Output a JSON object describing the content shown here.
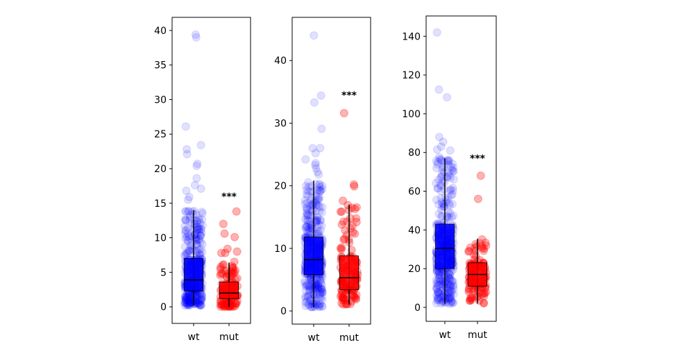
{
  "chart_data": [
    {
      "type": "box-strip",
      "categories": [
        "wt",
        "mut"
      ],
      "ylim": [
        -2.4,
        41.9
      ],
      "yticks": [
        0,
        5,
        10,
        15,
        20,
        25,
        30,
        35,
        40
      ],
      "colors": {
        "wt": "#0000ff",
        "mut": "#ff0000"
      },
      "boxes": [
        {
          "group": "wt",
          "whisker_low": 0.2,
          "q1": 2.3,
          "median": 3.9,
          "q3": 7.0,
          "whisker_high": 14.0,
          "n": 400
        },
        {
          "group": "mut",
          "whisker_low": 0.0,
          "q1": 1.2,
          "median": 2.0,
          "q3": 3.6,
          "whisker_high": 6.4,
          "n": 110
        }
      ],
      "outliers": {
        "wt": [
          39.4,
          39.0,
          26.1,
          23.4,
          22.8,
          22.1,
          20.7,
          20.4,
          18.6,
          17.6,
          17.1,
          16.8,
          15.9,
          15.5
        ],
        "mut": [
          13.8,
          12.0,
          10.6,
          10.1,
          8.4,
          8.0,
          7.8,
          7.8,
          6.5
        ]
      },
      "annotation": {
        "text": "***",
        "group": "mut",
        "y": 16
      }
    },
    {
      "type": "box-strip",
      "categories": [
        "wt",
        "mut"
      ],
      "ylim": [
        -2.1,
        46.9
      ],
      "yticks": [
        0,
        10,
        20,
        30,
        40
      ],
      "colors": {
        "wt": "#0000ff",
        "mut": "#ff0000"
      },
      "boxes": [
        {
          "group": "wt",
          "whisker_low": 0.6,
          "q1": 5.8,
          "median": 8.2,
          "q3": 11.8,
          "whisker_high": 20.8,
          "n": 400
        },
        {
          "group": "mut",
          "whisker_low": 1.0,
          "q1": 3.4,
          "median": 5.3,
          "q3": 8.8,
          "whisker_high": 17.0,
          "n": 110
        }
      ],
      "outliers": {
        "wt": [
          44.0,
          34.4,
          33.3,
          29.1,
          26.0,
          26.0,
          25.2,
          24.2,
          23.6,
          23.3,
          22.8,
          22.2,
          21.8
        ],
        "mut": [
          31.6,
          20.2,
          19.9,
          17.6,
          16.9,
          16.3,
          14.8,
          14.2,
          13.2
        ]
      },
      "annotation": {
        "text": "***",
        "group": "mut",
        "y": 34.5
      }
    },
    {
      "type": "box-strip",
      "categories": [
        "wt",
        "mut"
      ],
      "ylim": [
        -7.2,
        150.5
      ],
      "yticks": [
        0,
        20,
        40,
        60,
        80,
        100,
        120,
        140
      ],
      "colors": {
        "wt": "#0000ff",
        "mut": "#ff0000"
      },
      "boxes": [
        {
          "group": "wt",
          "whisker_low": 2.0,
          "q1": 20.0,
          "median": 30.5,
          "q3": 43.0,
          "whisker_high": 77.0,
          "n": 400
        },
        {
          "group": "mut",
          "whisker_low": 2.0,
          "q1": 11.0,
          "median": 17.0,
          "q3": 23.0,
          "whisker_high": 35.5,
          "n": 110
        }
      ],
      "outliers": {
        "wt": [
          142.0,
          112.5,
          108.5,
          88.0,
          85.5,
          83.0,
          81.5,
          81.0,
          77.5,
          75.0,
          72.5
        ],
        "mut": [
          68.0,
          56.0
        ]
      },
      "annotation": {
        "text": "***",
        "group": "mut",
        "y": 77
      }
    }
  ]
}
